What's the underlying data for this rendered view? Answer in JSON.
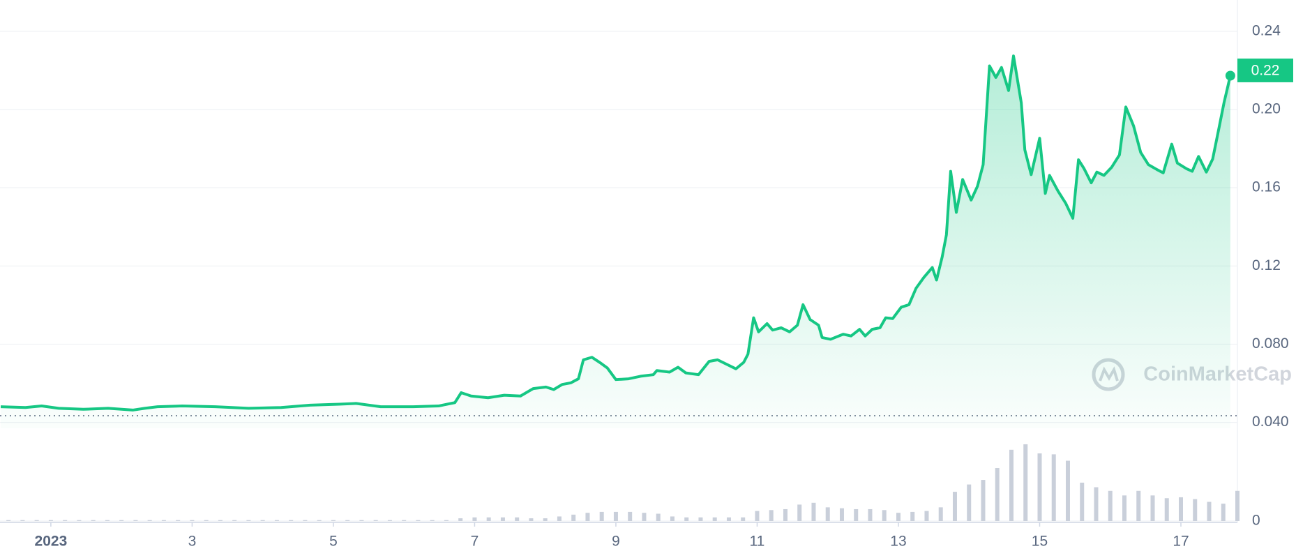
{
  "chart_data": [
    {
      "type": "line",
      "color": "#16c784",
      "xlim": [
        0.28,
        17.8
      ],
      "ylim": [
        0.037,
        0.256
      ],
      "yticks": [
        0.24,
        {
          "value": 0.2,
          "label": "0.20"
        },
        0.16,
        0.12,
        {
          "value": 0.08,
          "label": "0.080"
        },
        {
          "value": 0.04,
          "label": "0.040"
        }
      ],
      "grid": true,
      "last_price": 0.22,
      "watermark": "CoinMarketCap",
      "x": [
        0.29,
        0.64,
        0.87,
        1.11,
        1.46,
        1.81,
        2.16,
        2.33,
        2.51,
        2.86,
        3.33,
        3.8,
        4.26,
        4.67,
        5.08,
        5.32,
        5.67,
        6.13,
        6.49,
        6.72,
        6.81,
        6.95,
        7.19,
        7.42,
        7.65,
        7.83,
        8.01,
        8.12,
        8.24,
        8.36,
        8.47,
        8.54,
        8.66,
        8.77,
        8.88,
        9.0,
        9.18,
        9.35,
        9.53,
        9.58,
        9.76,
        9.88,
        9.99,
        10.17,
        10.32,
        10.44,
        10.7,
        10.81,
        10.87,
        10.95,
        11.02,
        11.14,
        11.22,
        11.34,
        11.46,
        11.57,
        11.65,
        11.75,
        11.87,
        11.92,
        12.04,
        12.22,
        12.33,
        12.45,
        12.53,
        12.63,
        12.74,
        12.82,
        12.92,
        13.04,
        13.15,
        13.25,
        13.36,
        13.48,
        13.54,
        13.62,
        13.68,
        13.74,
        13.82,
        13.91,
        14.03,
        14.12,
        14.2,
        14.29,
        14.38,
        14.46,
        14.56,
        14.63,
        14.74,
        14.79,
        14.88,
        15.0,
        15.08,
        15.14,
        15.26,
        15.37,
        15.47,
        15.55,
        15.63,
        15.73,
        15.81,
        15.91,
        16.02,
        16.13,
        16.22,
        16.33,
        16.43,
        16.54,
        16.66,
        16.75,
        16.87,
        16.95,
        17.08,
        17.16,
        17.25,
        17.36,
        17.45,
        17.54,
        17.61,
        17.7
      ],
      "values": [
        0.048,
        0.0476,
        0.0484,
        0.0472,
        0.0467,
        0.0472,
        0.0463,
        0.0472,
        0.048,
        0.0484,
        0.048,
        0.0472,
        0.0476,
        0.0488,
        0.0493,
        0.0497,
        0.048,
        0.048,
        0.0484,
        0.0501,
        0.0552,
        0.0535,
        0.0526,
        0.0539,
        0.0535,
        0.0573,
        0.0581,
        0.0568,
        0.0594,
        0.0602,
        0.0623,
        0.072,
        0.0733,
        0.0707,
        0.0678,
        0.0619,
        0.0623,
        0.0636,
        0.0644,
        0.0665,
        0.0657,
        0.0682,
        0.0653,
        0.0644,
        0.0712,
        0.072,
        0.0674,
        0.0707,
        0.0749,
        0.0935,
        0.0863,
        0.0905,
        0.0872,
        0.0884,
        0.0863,
        0.0897,
        0.1002,
        0.0926,
        0.0897,
        0.0834,
        0.0825,
        0.0851,
        0.0842,
        0.0876,
        0.0842,
        0.0876,
        0.0884,
        0.0935,
        0.0931,
        0.0989,
        0.1002,
        0.1086,
        0.1141,
        0.1192,
        0.1128,
        0.1246,
        0.136,
        0.1684,
        0.1474,
        0.1642,
        0.1537,
        0.1608,
        0.1718,
        0.2223,
        0.2164,
        0.2215,
        0.2097,
        0.2274,
        0.2034,
        0.1794,
        0.1667,
        0.1853,
        0.1571,
        0.1663,
        0.1583,
        0.152,
        0.1444,
        0.1743,
        0.1697,
        0.1625,
        0.168,
        0.1663,
        0.1705,
        0.1768,
        0.2013,
        0.1916,
        0.1781,
        0.1718,
        0.1693,
        0.1676,
        0.1823,
        0.1726,
        0.1697,
        0.1684,
        0.176,
        0.168,
        0.1747,
        0.1907,
        0.2034,
        0.2173
      ]
    },
    {
      "type": "bar",
      "color": "#c9cfda",
      "xlim": [
        0.28,
        17.8
      ],
      "ylim": [
        0,
        100
      ],
      "yticks": [
        0
      ],
      "xticks": [
        {
          "value": 1,
          "label": "2023"
        },
        3,
        5,
        7,
        9,
        11,
        13,
        15,
        17
      ],
      "x": [
        0.4,
        0.6,
        0.8,
        1.0,
        1.2,
        1.4,
        1.6,
        1.8,
        2.0,
        2.2,
        2.4,
        2.6,
        2.8,
        3.0,
        3.2,
        3.4,
        3.6,
        3.8,
        4.0,
        4.2,
        4.4,
        4.6,
        4.8,
        5.0,
        5.2,
        5.4,
        5.6,
        5.8,
        6.0,
        6.2,
        6.4,
        6.6,
        6.8,
        7.0,
        7.2,
        7.4,
        7.6,
        7.8,
        8.0,
        8.2,
        8.4,
        8.6,
        8.8,
        9.0,
        9.2,
        9.4,
        9.6,
        9.8,
        10.0,
        10.2,
        10.4,
        10.6,
        10.8,
        11.0,
        11.2,
        11.4,
        11.6,
        11.8,
        12.0,
        12.2,
        12.4,
        12.6,
        12.8,
        13.0,
        13.2,
        13.4,
        13.6,
        13.8,
        14.0,
        14.2,
        14.4,
        14.6,
        14.8,
        15.0,
        15.2,
        15.4,
        15.6,
        15.8,
        16.0,
        16.2,
        16.4,
        16.6,
        16.8,
        17.0,
        17.2,
        17.4,
        17.6,
        17.8
      ],
      "values": [
        1,
        1,
        1,
        1,
        1,
        1,
        1,
        1,
        1,
        1,
        1,
        1,
        1,
        1,
        1,
        1,
        1,
        1,
        1,
        1,
        1,
        1,
        1,
        1,
        1,
        1,
        1,
        1,
        1,
        1,
        1,
        1,
        3,
        4,
        4,
        4,
        4,
        3,
        3,
        5,
        7,
        9,
        10,
        10,
        10,
        9,
        8,
        5,
        4,
        4,
        4,
        4,
        4,
        11,
        12,
        13,
        18,
        20,
        15,
        14,
        13,
        13,
        12,
        9,
        10,
        11,
        15,
        32,
        40,
        45,
        58,
        78,
        84,
        74,
        73,
        66,
        42,
        37,
        33,
        28,
        33,
        28,
        25,
        26,
        24,
        21,
        19,
        33
      ]
    }
  ]
}
